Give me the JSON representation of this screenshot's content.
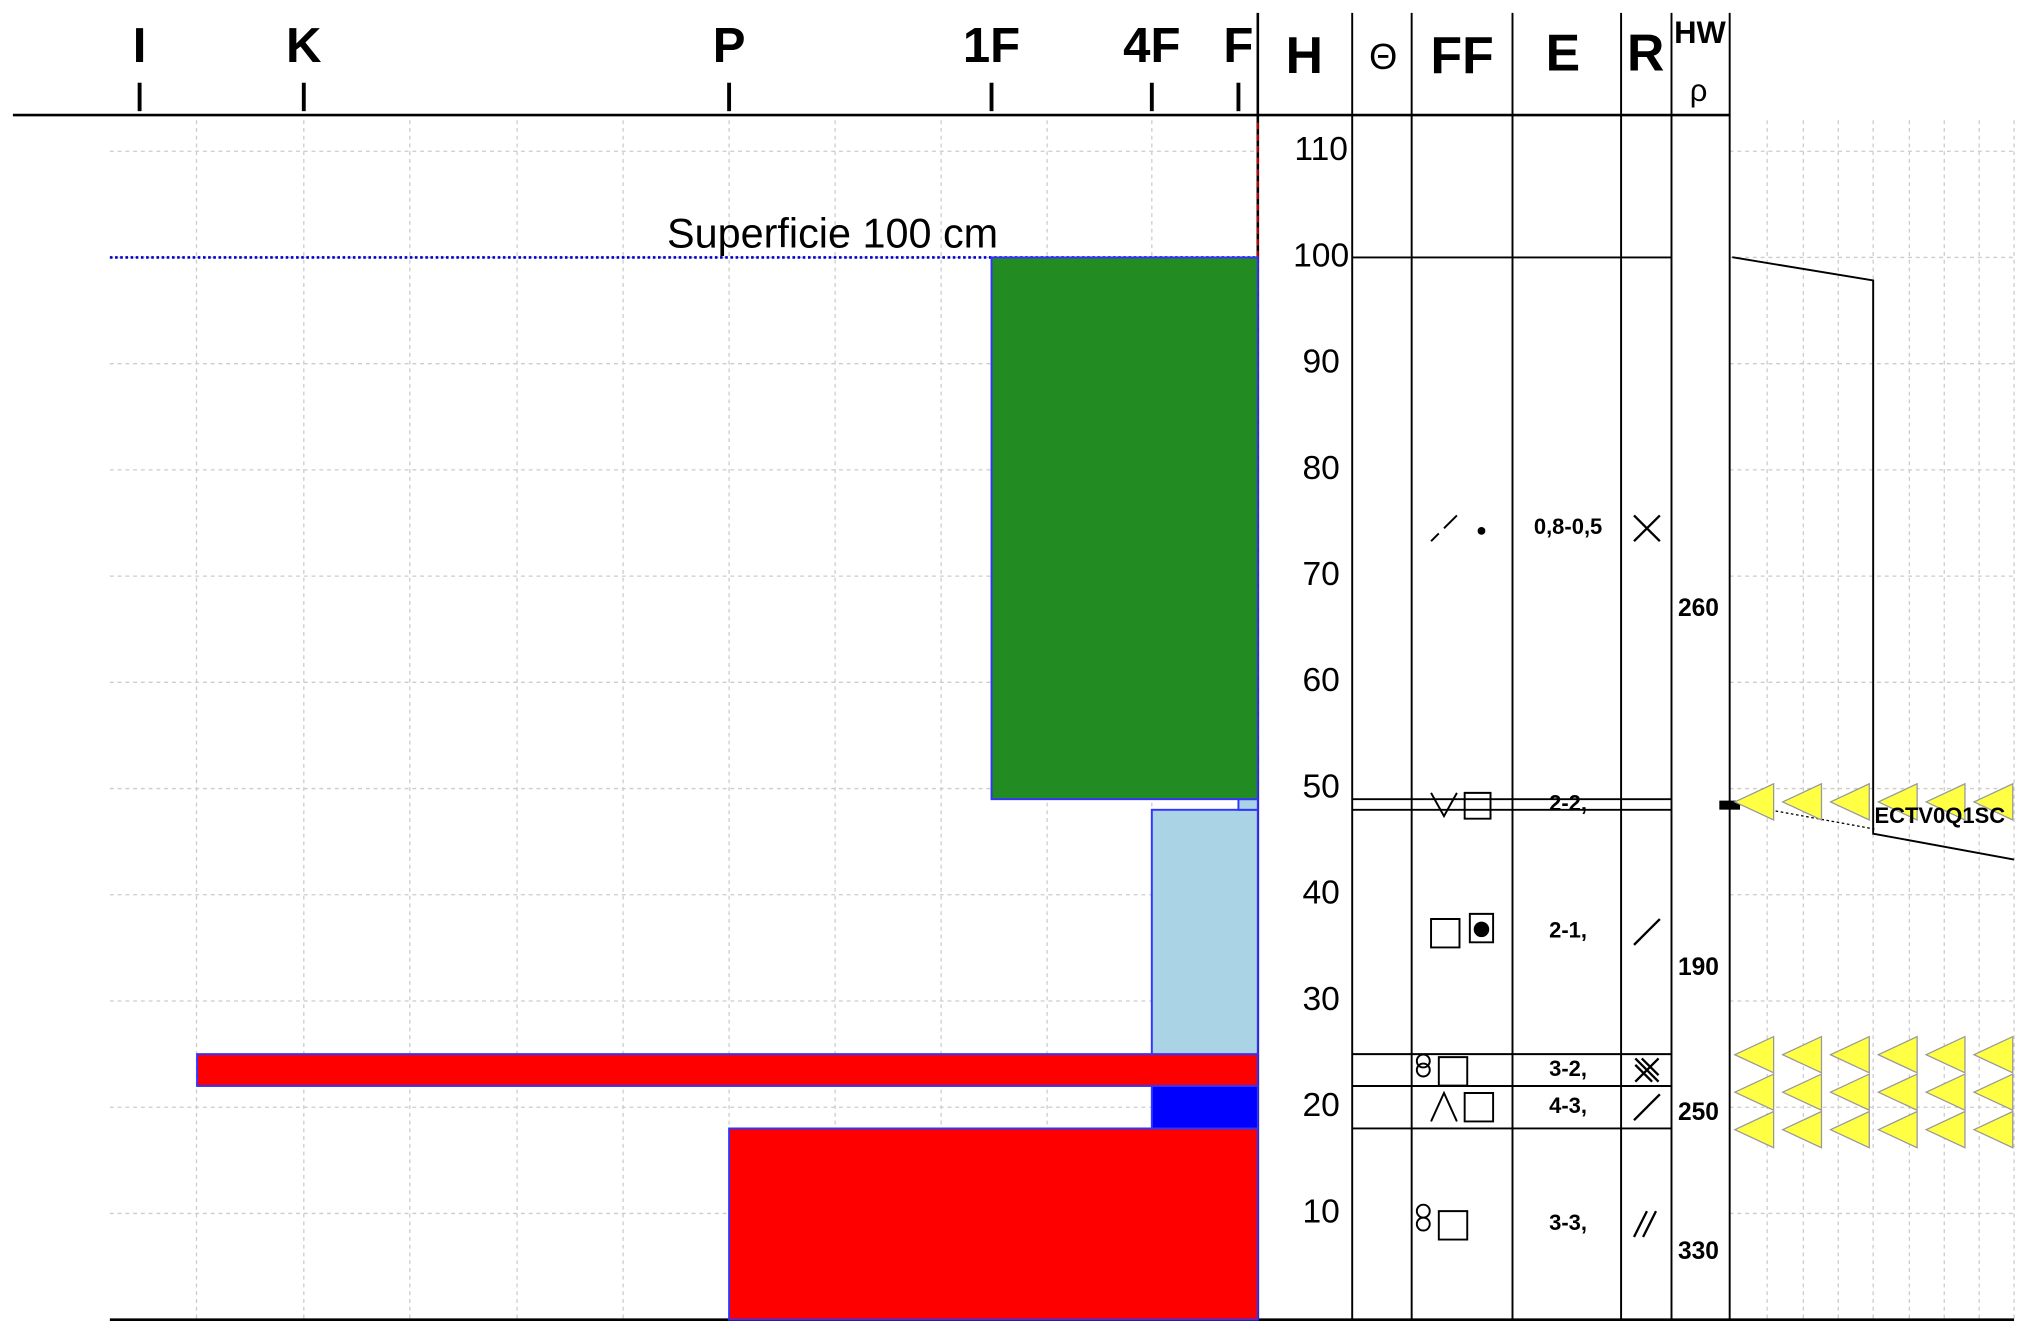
{
  "hardness_scale": [
    "I",
    "K",
    "P",
    "1F",
    "4F",
    "F"
  ],
  "columns": {
    "height": "H",
    "temperature": "Θ",
    "grain_form": "FF",
    "grain_size": "E",
    "wetness": "R",
    "hand_hardness": "HW",
    "density": "ρ"
  },
  "height_axis": {
    "ylim": [
      0,
      110
    ],
    "yticks": [
      10,
      20,
      30,
      40,
      50,
      60,
      70,
      80,
      90,
      100,
      110
    ]
  },
  "surface": {
    "label": "Superficie  100 cm",
    "height": 100
  },
  "layers": [
    {
      "bottom": 0,
      "top": 18,
      "hardness": 2,
      "color": "#ff0000",
      "grain_size": "3-3,",
      "density": 330
    },
    {
      "bottom": 18,
      "top": 22,
      "hardness": 4,
      "color": "#0000ff",
      "grain_size": "4-3,",
      "density": 250
    },
    {
      "bottom": 22,
      "top": 25,
      "hardness": 0.35,
      "color": "#ff0000",
      "grain_size": "3-2,"
    },
    {
      "bottom": 25,
      "top": 48,
      "hardness": 4,
      "color": "#aad4e6",
      "grain_size": "2-1,",
      "density": 190
    },
    {
      "bottom": 48,
      "top": 49,
      "hardness": 5,
      "color": "#aad4e6",
      "grain_size": "2-2,"
    },
    {
      "bottom": 49,
      "top": 100,
      "hardness": 3,
      "color": "#228b22",
      "grain_size": "0,8-0,5",
      "density": 260
    }
  ],
  "stability_test": {
    "label": "ECTV0Q1SC",
    "height": 48.5
  }
}
